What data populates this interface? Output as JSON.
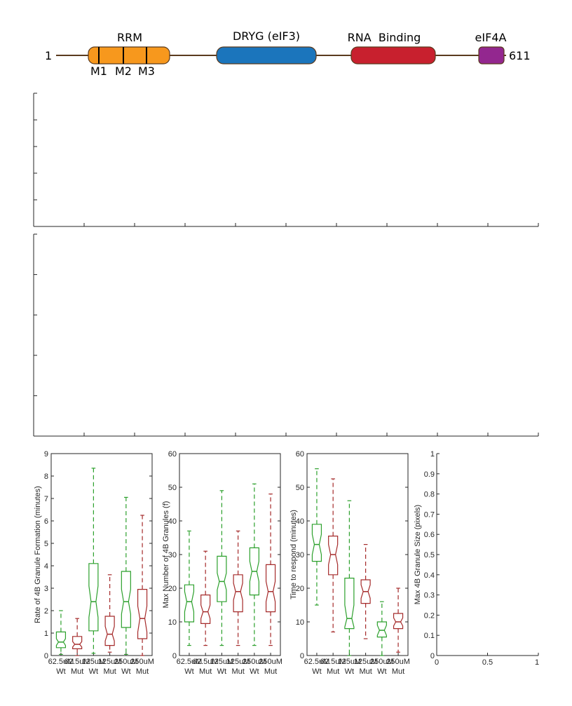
{
  "domain_map": {
    "start_label": "1",
    "end_label": "611",
    "domains": [
      {
        "name": "RRM",
        "color": "#f7981d",
        "motifs": [
          "M1",
          "M2",
          "M3"
        ]
      },
      {
        "name": "DRYG (eIF3)",
        "color": "#1b75bc"
      },
      {
        "name": "RNA  Binding",
        "color": "#c8202e"
      },
      {
        "name": "eIF4A",
        "color": "#93278f"
      }
    ]
  },
  "colors": {
    "wt": "#2ca02c",
    "mut": "#a52a2a",
    "axis": "#262626"
  },
  "chart_data": [
    {
      "type": "blank",
      "xticks_count": 10,
      "yticks_count": 5
    },
    {
      "type": "blank",
      "xticks_count": 10,
      "yticks_count": 5
    },
    {
      "type": "box",
      "ylabel": "Rate of 4B Granule Formation (minutes)",
      "ylim": [
        0,
        9
      ],
      "yticks": [
        0,
        1,
        2,
        3,
        4,
        5,
        6,
        7,
        8,
        9
      ],
      "categories": [
        {
          "line1": "62.5uM",
          "line2": "Wt"
        },
        {
          "line1": "62.5uM",
          "line2": "Mut"
        },
        {
          "line1": "125uM",
          "line2": "Wt"
        },
        {
          "line1": "125uM",
          "line2": "Mut"
        },
        {
          "line1": "250uM",
          "line2": "Wt"
        },
        {
          "line1": "250uM",
          "line2": "Mut"
        }
      ],
      "boxes": [
        {
          "group": "wt",
          "min": 0.05,
          "q1": 0.35,
          "median": 0.6,
          "q3": 1.05,
          "max": 2.0,
          "notch": [
            0.45,
            0.75
          ]
        },
        {
          "group": "mut",
          "min": 0.0,
          "q1": 0.3,
          "median": 0.5,
          "q3": 0.85,
          "max": 1.65,
          "notch": [
            0.38,
            0.62
          ]
        },
        {
          "group": "wt",
          "min": 0.1,
          "q1": 1.1,
          "median": 2.4,
          "q3": 4.1,
          "max": 8.35,
          "notch": [
            1.7,
            3.1
          ]
        },
        {
          "group": "mut",
          "min": 0.15,
          "q1": 0.45,
          "median": 0.95,
          "q3": 1.75,
          "max": 3.6,
          "notch": [
            0.65,
            1.3
          ]
        },
        {
          "group": "wt",
          "min": 0.05,
          "q1": 1.25,
          "median": 2.4,
          "q3": 3.75,
          "max": 7.05,
          "notch": [
            1.85,
            2.95
          ]
        },
        {
          "group": "mut",
          "min": 0.0,
          "q1": 0.75,
          "median": 1.65,
          "q3": 2.95,
          "max": 6.25,
          "notch": [
            1.05,
            2.2
          ]
        }
      ]
    },
    {
      "type": "box",
      "ylabel": "Max Number of 4B Granules (f)",
      "ylim": [
        0,
        60
      ],
      "yticks": [
        0,
        10,
        20,
        30,
        40,
        50,
        60
      ],
      "categories": [
        {
          "line1": "62.5uM",
          "line2": "Wt"
        },
        {
          "line1": "62.5uM",
          "line2": "Mut"
        },
        {
          "line1": "125uM",
          "line2": "Wt"
        },
        {
          "line1": "125uM",
          "line2": "Mut"
        },
        {
          "line1": "250uM",
          "line2": "Wt"
        },
        {
          "line1": "250uM",
          "line2": "Mut"
        }
      ],
      "boxes": [
        {
          "group": "wt",
          "min": 3,
          "q1": 10,
          "median": 16,
          "q3": 21,
          "max": 37,
          "notch": [
            13,
            19
          ]
        },
        {
          "group": "mut",
          "min": 3,
          "q1": 9.5,
          "median": 13,
          "q3": 18,
          "max": 31,
          "notch": [
            11,
            15
          ]
        },
        {
          "group": "wt",
          "min": 3,
          "q1": 16,
          "median": 22,
          "q3": 29.5,
          "max": 49,
          "notch": [
            19.5,
            24.5
          ]
        },
        {
          "group": "mut",
          "min": 3,
          "q1": 13,
          "median": 19,
          "q3": 24,
          "max": 37,
          "notch": [
            16.5,
            21.5
          ]
        },
        {
          "group": "wt",
          "min": 3,
          "q1": 18,
          "median": 25,
          "q3": 32,
          "max": 51,
          "notch": [
            22,
            28
          ]
        },
        {
          "group": "mut",
          "min": 3,
          "q1": 13,
          "median": 19,
          "q3": 27,
          "max": 48,
          "notch": [
            16,
            22
          ]
        }
      ]
    },
    {
      "type": "box",
      "ylabel": "Time to respond (minutes)",
      "ylim": [
        0,
        60
      ],
      "yticks": [
        0,
        10,
        20,
        30,
        40,
        50,
        60
      ],
      "categories": [
        {
          "line1": "62.5uM",
          "line2": "Wt"
        },
        {
          "line1": "62.5uM",
          "line2": "Mut"
        },
        {
          "line1": "125uM",
          "line2": "Wt"
        },
        {
          "line1": "125uM",
          "line2": "Mut"
        },
        {
          "line1": "250uM",
          "line2": "Wt"
        },
        {
          "line1": "250uM",
          "line2": "Mut"
        }
      ],
      "boxes": [
        {
          "group": "wt",
          "min": 15,
          "q1": 28,
          "median": 33,
          "q3": 39,
          "max": 55.5,
          "notch": [
            30,
            36
          ]
        },
        {
          "group": "mut",
          "min": 7,
          "q1": 24,
          "median": 30,
          "q3": 35.5,
          "max": 52.5,
          "notch": [
            27,
            33
          ]
        },
        {
          "group": "wt",
          "min": 0,
          "q1": 8,
          "median": 11,
          "q3": 23,
          "max": 46,
          "notch": [
            8.5,
            15
          ]
        },
        {
          "group": "mut",
          "min": 5,
          "q1": 15.5,
          "median": 19,
          "q3": 22.5,
          "max": 33,
          "notch": [
            17,
            21
          ]
        },
        {
          "group": "wt",
          "min": 0,
          "q1": 5.5,
          "median": 7.5,
          "q3": 10,
          "max": 16,
          "notch": [
            6,
            9
          ]
        },
        {
          "group": "mut",
          "min": 1,
          "q1": 8,
          "median": 10,
          "q3": 12.5,
          "max": 20,
          "notch": [
            8.8,
            11.2
          ]
        }
      ]
    },
    {
      "type": "blank",
      "ylabel": "Max 4B Granule Size (pixels)",
      "ylim": [
        0,
        1
      ],
      "xlim": [
        0,
        1
      ],
      "yticks": [
        "0",
        "0.1",
        "0.2",
        "0.3",
        "0.4",
        "0.5",
        "0.6",
        "0.7",
        "0.8",
        "0.9",
        "1"
      ],
      "xticks": [
        "0",
        "0.5",
        "1"
      ]
    }
  ]
}
